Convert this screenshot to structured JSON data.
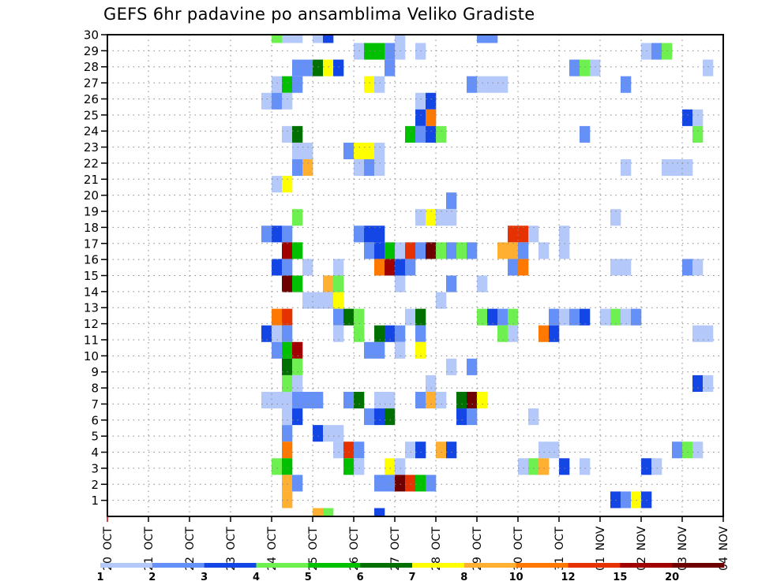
{
  "chart_data": {
    "type": "heatmap",
    "title": "GEFS 6hr padavine po ansamblima Veliko Gradiste",
    "xlabel": "",
    "ylabel": "",
    "x_step_hours": 6,
    "x_columns": 60,
    "x_ticks": [
      {
        "day": "20",
        "month": "OCT"
      },
      {
        "day": "21",
        "month": "OCT"
      },
      {
        "day": "22",
        "month": "OCT"
      },
      {
        "day": "23",
        "month": "OCT"
      },
      {
        "day": "24",
        "month": "OCT"
      },
      {
        "day": "25",
        "month": "OCT"
      },
      {
        "day": "26",
        "month": "OCT"
      },
      {
        "day": "27",
        "month": "OCT"
      },
      {
        "day": "28",
        "month": "OCT"
      },
      {
        "day": "29",
        "month": "OCT"
      },
      {
        "day": "30",
        "month": "OCT"
      },
      {
        "day": "31",
        "month": "OCT"
      },
      {
        "day": "01",
        "month": "NOV"
      },
      {
        "day": "02",
        "month": "NOV"
      },
      {
        "day": "03",
        "month": "NOV"
      },
      {
        "day": "04",
        "month": "NOV"
      }
    ],
    "y_ticks": [
      "1",
      "2",
      "3",
      "4",
      "5",
      "6",
      "7",
      "8",
      "9",
      "10",
      "11",
      "12",
      "13",
      "14",
      "15",
      "16",
      "17",
      "18",
      "19",
      "20",
      "21",
      "22",
      "23",
      "24",
      "25",
      "26",
      "27",
      "28",
      "29",
      "30"
    ],
    "ylim": [
      0,
      30
    ],
    "grid": true,
    "legend": {
      "placement": "bottom",
      "levels": [
        "1",
        "2",
        "3",
        "4",
        "5",
        "6",
        "7",
        "8",
        "10",
        "12",
        "15",
        "20"
      ],
      "thresholds": [
        1,
        2,
        3,
        4,
        5,
        6,
        7,
        8,
        10,
        12,
        15,
        20
      ],
      "colors": [
        "#b4c8fa",
        "#6490f8",
        "#1446e6",
        "#6ef050",
        "#00c000",
        "#007000",
        "#ffff00",
        "#ffaf32",
        "#ff7800",
        "#e63200",
        "#a00000",
        "#6e0000"
      ]
    },
    "rows": [
      {
        "row": 29,
        "cells": [
          [
            16,
            4.5
          ],
          [
            17,
            1.5
          ],
          [
            18,
            1.5
          ],
          [
            20,
            1.5
          ],
          [
            21,
            3.5
          ],
          [
            28,
            1.5
          ],
          [
            36,
            2.5
          ],
          [
            37,
            2.5
          ]
        ]
      },
      {
        "row": 28,
        "cells": [
          [
            24,
            1.5
          ],
          [
            25,
            5.5
          ],
          [
            26,
            5.5
          ],
          [
            27,
            2.5
          ],
          [
            28,
            1.5
          ],
          [
            30,
            1.5
          ],
          [
            52,
            1.5
          ],
          [
            53,
            2.5
          ],
          [
            54,
            4.5
          ]
        ]
      },
      {
        "row": 27,
        "cells": [
          [
            18,
            2.5
          ],
          [
            19,
            2.5
          ],
          [
            20,
            6.5
          ],
          [
            21,
            7.5
          ],
          [
            22,
            3.5
          ],
          [
            27,
            2.5
          ],
          [
            45,
            2.5
          ],
          [
            46,
            4.5
          ],
          [
            47,
            1.5
          ],
          [
            58,
            1.5
          ]
        ]
      },
      {
        "row": 26,
        "cells": [
          [
            16,
            1.5
          ],
          [
            17,
            5.5
          ],
          [
            18,
            2.5
          ],
          [
            25,
            7.5
          ],
          [
            26,
            1.5
          ],
          [
            35,
            2.5
          ],
          [
            36,
            1.5
          ],
          [
            37,
            1.5
          ],
          [
            38,
            1.5
          ],
          [
            50,
            2.5
          ]
        ]
      },
      {
        "row": 25,
        "cells": [
          [
            15,
            1.5
          ],
          [
            16,
            2.5
          ],
          [
            17,
            1.5
          ],
          [
            30,
            1.5
          ],
          [
            31,
            3.5
          ]
        ]
      },
      {
        "row": 24,
        "cells": [
          [
            30,
            3.5
          ],
          [
            31,
            11
          ],
          [
            56,
            3.5
          ],
          [
            57,
            1.5
          ]
        ]
      },
      {
        "row": 23,
        "cells": [
          [
            17,
            1.5
          ],
          [
            18,
            6.5
          ],
          [
            29,
            5.5
          ],
          [
            30,
            2.5
          ],
          [
            31,
            3.5
          ],
          [
            32,
            4.5
          ],
          [
            46,
            2.5
          ],
          [
            57,
            4.5
          ]
        ]
      },
      {
        "row": 22,
        "cells": [
          [
            18,
            1.5
          ],
          [
            19,
            1.5
          ],
          [
            23,
            2.5
          ],
          [
            24,
            7.5
          ],
          [
            25,
            7.5
          ],
          [
            26,
            1.5
          ]
        ]
      },
      {
        "row": 21,
        "cells": [
          [
            18,
            2.5
          ],
          [
            19,
            9
          ],
          [
            24,
            1.5
          ],
          [
            25,
            2.5
          ],
          [
            26,
            1.5
          ],
          [
            50,
            1.5
          ],
          [
            54,
            1.5
          ],
          [
            55,
            1.5
          ],
          [
            56,
            1.5
          ]
        ]
      },
      {
        "row": 20,
        "cells": [
          [
            16,
            1.5
          ],
          [
            17,
            7.5
          ]
        ]
      },
      {
        "row": 19,
        "cells": [
          [
            33,
            2.5
          ]
        ]
      },
      {
        "row": 18,
        "cells": [
          [
            18,
            4.5
          ],
          [
            30,
            1.5
          ],
          [
            31,
            7.5
          ],
          [
            32,
            1.5
          ],
          [
            33,
            1.5
          ],
          [
            49,
            1.5
          ]
        ]
      },
      {
        "row": 17,
        "cells": [
          [
            15,
            2.5
          ],
          [
            16,
            3.5
          ],
          [
            17,
            2.5
          ],
          [
            24,
            2.5
          ],
          [
            25,
            3.5
          ],
          [
            26,
            3.5
          ],
          [
            39,
            13.5
          ],
          [
            40,
            13.5
          ],
          [
            41,
            1.5
          ],
          [
            44,
            1.5
          ]
        ]
      },
      {
        "row": 16,
        "cells": [
          [
            17,
            17.5
          ],
          [
            18,
            5.5
          ],
          [
            25,
            2.5
          ],
          [
            26,
            3.5
          ],
          [
            27,
            5.5
          ],
          [
            28,
            1.5
          ],
          [
            29,
            13.5
          ],
          [
            30,
            2.5
          ],
          [
            31,
            22
          ],
          [
            32,
            4.5
          ],
          [
            33,
            2.5
          ],
          [
            34,
            4.5
          ],
          [
            35,
            2.5
          ],
          [
            38,
            9
          ],
          [
            39,
            9
          ],
          [
            40,
            2.5
          ],
          [
            42,
            1.5
          ],
          [
            44,
            1.5
          ]
        ]
      },
      {
        "row": 15,
        "cells": [
          [
            16,
            3.5
          ],
          [
            17,
            2.5
          ],
          [
            19,
            1.5
          ],
          [
            22,
            1.5
          ],
          [
            26,
            11
          ],
          [
            27,
            17.5
          ],
          [
            28,
            3.5
          ],
          [
            29,
            2.5
          ],
          [
            39,
            2.5
          ],
          [
            40,
            11
          ],
          [
            49,
            1.5
          ],
          [
            50,
            1.5
          ],
          [
            56,
            2.5
          ],
          [
            57,
            1.5
          ]
        ]
      },
      {
        "row": 14,
        "cells": [
          [
            17,
            22
          ],
          [
            18,
            5.5
          ],
          [
            21,
            9
          ],
          [
            22,
            4.5
          ],
          [
            28,
            1.5
          ],
          [
            33,
            2.5
          ],
          [
            36,
            1.5
          ]
        ]
      },
      {
        "row": 13,
        "cells": [
          [
            19,
            1.5
          ],
          [
            20,
            1.5
          ],
          [
            21,
            1.5
          ],
          [
            22,
            7.5
          ],
          [
            32,
            1.5
          ]
        ]
      },
      {
        "row": 12,
        "cells": [
          [
            16,
            11
          ],
          [
            17,
            13.5
          ],
          [
            22,
            2.5
          ],
          [
            23,
            6.5
          ],
          [
            24,
            4.5
          ],
          [
            29,
            1.5
          ],
          [
            30,
            6.5
          ],
          [
            36,
            4.5
          ],
          [
            37,
            3.5
          ],
          [
            38,
            2.5
          ],
          [
            39,
            4.5
          ],
          [
            43,
            2.5
          ],
          [
            44,
            1.5
          ],
          [
            45,
            2.5
          ],
          [
            46,
            3.5
          ],
          [
            48,
            1.5
          ],
          [
            49,
            4.5
          ],
          [
            50,
            1.5
          ],
          [
            51,
            2.5
          ]
        ]
      },
      {
        "row": 11,
        "cells": [
          [
            15,
            3.5
          ],
          [
            16,
            1.5
          ],
          [
            17,
            2.5
          ],
          [
            22,
            1.5
          ],
          [
            24,
            4.5
          ],
          [
            26,
            6.5
          ],
          [
            27,
            3.5
          ],
          [
            28,
            2.5
          ],
          [
            30,
            2.5
          ],
          [
            38,
            4.5
          ],
          [
            39,
            1.5
          ],
          [
            42,
            11
          ],
          [
            43,
            3.5
          ],
          [
            57,
            1.5
          ],
          [
            58,
            1.5
          ]
        ]
      },
      {
        "row": 10,
        "cells": [
          [
            16,
            2.5
          ],
          [
            17,
            5.5
          ],
          [
            18,
            17.5
          ],
          [
            25,
            2.5
          ],
          [
            26,
            2.5
          ],
          [
            28,
            1.5
          ],
          [
            30,
            7.5
          ]
        ]
      },
      {
        "row": 9,
        "cells": [
          [
            17,
            6.5
          ],
          [
            18,
            4.5
          ],
          [
            33,
            1.5
          ],
          [
            35,
            2.5
          ]
        ]
      },
      {
        "row": 8,
        "cells": [
          [
            17,
            4.5
          ],
          [
            18,
            1.5
          ],
          [
            31,
            1.5
          ],
          [
            57,
            3.5
          ],
          [
            58,
            1.5
          ]
        ]
      },
      {
        "row": 7,
        "cells": [
          [
            15,
            1.5
          ],
          [
            16,
            1.5
          ],
          [
            17,
            1.5
          ],
          [
            18,
            2.5
          ],
          [
            19,
            2.5
          ],
          [
            20,
            2.5
          ],
          [
            23,
            2.5
          ],
          [
            24,
            6.5
          ],
          [
            26,
            1.5
          ],
          [
            27,
            1.5
          ],
          [
            30,
            2.5
          ],
          [
            31,
            9
          ],
          [
            32,
            1.5
          ],
          [
            34,
            6.5
          ],
          [
            35,
            22
          ],
          [
            36,
            7.5
          ]
        ]
      },
      {
        "row": 6,
        "cells": [
          [
            17,
            1.5
          ],
          [
            18,
            3.5
          ],
          [
            25,
            2.5
          ],
          [
            26,
            3.5
          ],
          [
            27,
            6.5
          ],
          [
            34,
            3.5
          ],
          [
            35,
            2.5
          ],
          [
            41,
            1.5
          ]
        ]
      },
      {
        "row": 5,
        "cells": [
          [
            17,
            2.5
          ],
          [
            20,
            3.5
          ],
          [
            21,
            1.5
          ],
          [
            22,
            1.5
          ]
        ]
      },
      {
        "row": 4,
        "cells": [
          [
            17,
            11
          ],
          [
            22,
            1.5
          ],
          [
            23,
            13.5
          ],
          [
            24,
            2.5
          ],
          [
            29,
            1.5
          ],
          [
            30,
            3.5
          ],
          [
            32,
            9
          ],
          [
            33,
            3.5
          ],
          [
            42,
            1.5
          ],
          [
            43,
            1.5
          ],
          [
            55,
            2.5
          ],
          [
            56,
            4.5
          ],
          [
            57,
            1.5
          ]
        ]
      },
      {
        "row": 3,
        "cells": [
          [
            16,
            4.5
          ],
          [
            17,
            5.5
          ],
          [
            23,
            5.5
          ],
          [
            24,
            1.5
          ],
          [
            27,
            7.5
          ],
          [
            28,
            1.5
          ],
          [
            40,
            1.5
          ],
          [
            41,
            4.5
          ],
          [
            42,
            9
          ],
          [
            44,
            3.5
          ],
          [
            46,
            1.5
          ],
          [
            52,
            3.5
          ],
          [
            53,
            1.5
          ]
        ]
      },
      {
        "row": 2,
        "cells": [
          [
            17,
            9
          ],
          [
            18,
            2.5
          ],
          [
            26,
            2.5
          ],
          [
            27,
            2.5
          ],
          [
            28,
            22
          ],
          [
            29,
            13.5
          ],
          [
            30,
            5.5
          ],
          [
            31,
            2.5
          ]
        ]
      },
      {
        "row": 1,
        "cells": [
          [
            17,
            9
          ],
          [
            49,
            3.5
          ],
          [
            50,
            2.5
          ],
          [
            51,
            7.5
          ],
          [
            52,
            3.5
          ]
        ]
      },
      {
        "row": 0,
        "cells": [
          [
            20,
            9
          ],
          [
            21,
            4.5
          ],
          [
            26,
            3.5
          ]
        ]
      }
    ]
  }
}
